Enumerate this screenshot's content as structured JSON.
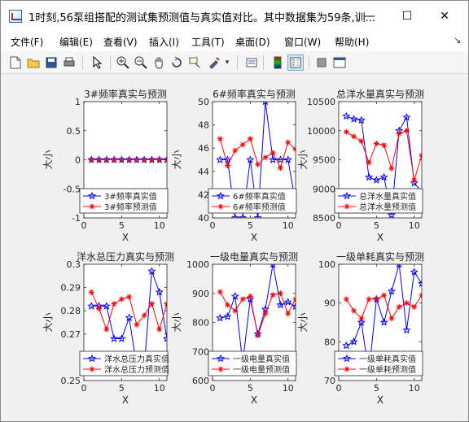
{
  "window": {
    "title": "1时刻,56泵组搭配的测试集预测值与真实值对比。其中数据集为59条,训...",
    "controls": {
      "minimize": "—",
      "maximize": "☐",
      "close": "✕"
    }
  },
  "menu": [
    "文件(F)",
    "编辑(E)",
    "查看(V)",
    "插入(I)",
    "工具(T)",
    "桌面(D)",
    "窗口(W)",
    "帮助(H)"
  ],
  "toolbar_icons": [
    "new-file-icon",
    "open-folder-icon",
    "save-icon",
    "print-icon",
    "pointer-icon",
    "zoom-in-icon",
    "zoom-out-icon",
    "pan-icon",
    "rotate-icon",
    "data-cursor-icon",
    "brush-icon",
    "link-icon",
    "colorbar-icon",
    "legend-icon",
    "hide-tools-icon",
    "dock-icon"
  ],
  "chart_data": [
    {
      "type": "line",
      "title": "3#频率真实与预测",
      "xlabel": "X",
      "ylabel": "大小",
      "xlim": [
        0,
        11
      ],
      "ylim": [
        -1,
        1
      ],
      "xticks": [
        0,
        5,
        10
      ],
      "yticks": [
        -1,
        -0.5,
        0,
        0.5,
        1
      ],
      "ytick_labels": [
        "-1",
        "-0.5",
        "0",
        "0.5",
        "1"
      ],
      "x": [
        1,
        2,
        3,
        4,
        5,
        6,
        7,
        8,
        9,
        10,
        11
      ],
      "series": [
        {
          "name": "3#频率真实值",
          "color": "#0000ff",
          "marker": "star",
          "values": [
            0,
            0,
            0,
            0,
            0,
            0,
            0,
            0,
            0,
            0,
            0
          ]
        },
        {
          "name": "3#频率预测值",
          "color": "#ff0000",
          "marker": "asterisk",
          "values": [
            0,
            0,
            0,
            0,
            0,
            0,
            0,
            0,
            0,
            0,
            0
          ]
        }
      ],
      "legend": "bottom"
    },
    {
      "type": "line",
      "title": "6#频率真实与预测",
      "xlabel": "X",
      "ylabel": "大小",
      "xlim": [
        0,
        11
      ],
      "ylim": [
        40,
        50
      ],
      "xticks": [
        0,
        5,
        10
      ],
      "yticks": [
        40,
        42,
        44,
        46,
        48,
        50
      ],
      "ytick_labels": [
        "40",
        "42",
        "44",
        "46",
        "48",
        "50"
      ],
      "x": [
        1,
        2,
        3,
        4,
        5,
        6,
        7,
        8,
        9,
        10,
        11
      ],
      "series": [
        {
          "name": "6#频率真实值",
          "color": "#0000ff",
          "marker": "star",
          "values": [
            45,
            45,
            40,
            40,
            45,
            40,
            50,
            45,
            45,
            45,
            41.3
          ]
        },
        {
          "name": "6#频率预测值",
          "color": "#ff0000",
          "marker": "asterisk",
          "values": [
            46.8,
            44.5,
            45.8,
            46.3,
            46.8,
            44.6,
            45.2,
            45.6,
            44.3,
            46.5,
            45.9
          ]
        }
      ],
      "legend": "bottom"
    },
    {
      "type": "line",
      "title": "总洋水量真实与预测",
      "xlabel": "X",
      "ylabel": "大小",
      "xlim": [
        0,
        11
      ],
      "ylim": [
        8500,
        10500
      ],
      "xticks": [
        0,
        5,
        10
      ],
      "yticks": [
        8500,
        9000,
        9500,
        10000,
        10500
      ],
      "ytick_labels": [
        "8500",
        "9000",
        "9500",
        "10000",
        "10500"
      ],
      "x": [
        1,
        2,
        3,
        4,
        5,
        6,
        7,
        8,
        9,
        10,
        11
      ],
      "series": [
        {
          "name": "总洋水量真实值",
          "color": "#0000ff",
          "marker": "star",
          "values": [
            10250,
            10200,
            10180,
            9200,
            9150,
            9200,
            8550,
            10000,
            10230,
            9100,
            8950
          ]
        },
        {
          "name": "总洋水量预测值",
          "color": "#ff0000",
          "marker": "asterisk",
          "values": [
            9980,
            9900,
            9820,
            9450,
            9780,
            9750,
            9350,
            9950,
            10000,
            9150,
            9580
          ]
        }
      ],
      "legend": "bottom"
    },
    {
      "type": "line",
      "title": "洋水总压力真实与预测",
      "xlabel": "X",
      "ylabel": "大小",
      "xlim": [
        0,
        11
      ],
      "ylim": [
        0.25,
        0.3
      ],
      "xticks": [
        0,
        5,
        10
      ],
      "yticks": [
        0.25,
        0.26,
        0.27,
        0.28,
        0.29,
        0.3
      ],
      "ytick_labels": [
        "0.25",
        "",
        "0.27",
        "0.28",
        "0.29",
        "0.3"
      ],
      "x": [
        1,
        2,
        3,
        4,
        5,
        6,
        7,
        8,
        9,
        10,
        11
      ],
      "series": [
        {
          "name": "洋水总压力真实值",
          "color": "#0000ff",
          "marker": "star",
          "values": [
            0.282,
            0.282,
            0.282,
            0.268,
            0.268,
            0.277,
            0.256,
            0.256,
            0.297,
            0.288,
            0.268
          ]
        },
        {
          "name": "洋水总压力预测值",
          "color": "#ff0000",
          "marker": "asterisk",
          "values": [
            0.288,
            0.281,
            0.272,
            0.283,
            0.285,
            0.286,
            0.274,
            0.278,
            0.283,
            0.272,
            0.283
          ]
        }
      ],
      "legend": "bottom"
    },
    {
      "type": "line",
      "title": "一级电量真实与预测",
      "xlabel": "X",
      "ylabel": "大小",
      "xlim": [
        0,
        11
      ],
      "ylim": [
        600,
        1000
      ],
      "xticks": [
        0,
        5,
        10
      ],
      "yticks": [
        600,
        700,
        800,
        900,
        1000
      ],
      "ytick_labels": [
        "600",
        "700",
        "800",
        "900",
        "1000"
      ],
      "x": [
        1,
        2,
        3,
        4,
        5,
        6,
        7,
        8,
        9,
        10,
        11
      ],
      "series": [
        {
          "name": "一级电量真实值",
          "color": "#0000ff",
          "marker": "star",
          "values": [
            815,
            820,
            890,
            660,
            880,
            760,
            845,
            1000,
            860,
            870,
            855
          ]
        },
        {
          "name": "一级电量预测值",
          "color": "#ff0000",
          "marker": "asterisk",
          "values": [
            905,
            860,
            840,
            880,
            890,
            755,
            830,
            895,
            900,
            830,
            880
          ]
        }
      ],
      "legend": "bottom"
    },
    {
      "type": "line",
      "title": "一级单耗真实与预测",
      "xlabel": "X",
      "ylabel": "大小",
      "xlim": [
        0,
        11
      ],
      "ylim": [
        70,
        100
      ],
      "xticks": [
        0,
        5,
        10
      ],
      "yticks": [
        70,
        80,
        90,
        100
      ],
      "ytick_labels": [
        "70",
        "80",
        "90",
        "100"
      ],
      "x": [
        1,
        2,
        3,
        4,
        5,
        6,
        7,
        8,
        9,
        10,
        11
      ],
      "series": [
        {
          "name": "一级单耗真实值",
          "color": "#0000ff",
          "marker": "star",
          "values": [
            79,
            80,
            85,
            72,
            91,
            85,
            93,
            100,
            83,
            98,
            95
          ]
        },
        {
          "name": "一级单耗预测值",
          "color": "#ff0000",
          "marker": "asterisk",
          "values": [
            91,
            88,
            86,
            91,
            91,
            92,
            86,
            89,
            90,
            89,
            92
          ]
        }
      ],
      "legend": "bottom"
    }
  ]
}
